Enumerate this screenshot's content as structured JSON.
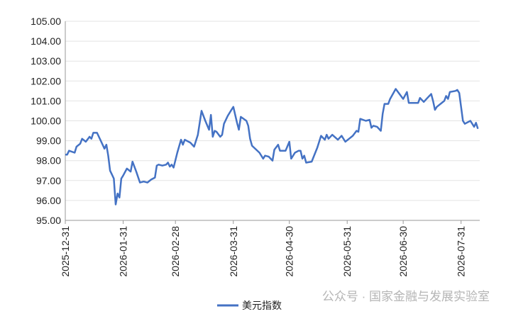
{
  "chart_data": {
    "type": "line",
    "x": [
      "2025-12-31",
      "2026-01-01",
      "2026-01-02",
      "2026-01-05",
      "2026-01-06",
      "2026-01-08",
      "2026-01-09",
      "2026-01-11",
      "2026-01-13",
      "2026-01-14",
      "2026-01-15",
      "2026-01-17",
      "2026-01-19",
      "2026-01-21",
      "2026-01-22",
      "2026-01-23",
      "2026-01-24",
      "2026-01-25",
      "2026-01-26",
      "2026-01-27",
      "2026-01-28",
      "2026-01-29",
      "2026-01-30",
      "2026-01-31",
      "2026-02-02",
      "2026-02-04",
      "2026-02-05",
      "2026-02-07",
      "2026-02-09",
      "2026-02-11",
      "2026-02-13",
      "2026-02-15",
      "2026-02-17",
      "2026-02-18",
      "2026-02-19",
      "2026-02-21",
      "2026-02-23",
      "2026-02-24",
      "2026-02-25",
      "2026-02-26",
      "2026-02-27",
      "2026-03-01",
      "2026-03-03",
      "2026-03-04",
      "2026-03-05",
      "2026-03-08",
      "2026-03-10",
      "2026-03-12",
      "2026-03-14",
      "2026-03-16",
      "2026-03-18",
      "2026-03-19",
      "2026-03-20",
      "2026-03-21",
      "2026-03-22",
      "2026-03-24",
      "2026-03-25",
      "2026-03-26",
      "2026-03-28",
      "2026-03-30",
      "2026-03-31",
      "2026-04-02",
      "2026-04-03",
      "2026-04-04",
      "2026-04-07",
      "2026-04-08",
      "2026-04-09",
      "2026-04-10",
      "2026-04-14",
      "2026-04-16",
      "2026-04-17",
      "2026-04-19",
      "2026-04-21",
      "2026-04-22",
      "2026-04-24",
      "2026-04-25",
      "2026-04-28",
      "2026-04-30",
      "2026-05-01",
      "2026-05-03",
      "2026-05-05",
      "2026-05-06",
      "2026-05-07",
      "2026-05-08",
      "2026-05-09",
      "2026-05-12",
      "2026-05-15",
      "2026-05-17",
      "2026-05-19",
      "2026-05-20",
      "2026-05-21",
      "2026-05-23",
      "2026-05-26",
      "2026-05-28",
      "2026-05-30",
      "2026-06-01",
      "2026-06-03",
      "2026-06-05",
      "2026-06-06",
      "2026-06-07",
      "2026-06-10",
      "2026-06-12",
      "2026-06-13",
      "2026-06-14",
      "2026-06-16",
      "2026-06-18",
      "2026-06-19",
      "2026-06-20",
      "2026-06-22",
      "2026-06-23",
      "2026-06-26",
      "2026-06-28",
      "2026-06-30",
      "2026-07-02",
      "2026-07-03",
      "2026-07-08",
      "2026-07-09",
      "2026-07-11",
      "2026-07-13",
      "2026-07-15",
      "2026-07-16",
      "2026-07-17",
      "2026-07-18",
      "2026-07-22",
      "2026-07-23",
      "2026-07-24",
      "2026-07-25",
      "2026-07-28",
      "2026-07-29",
      "2026-07-30",
      "2026-07-31",
      "2026-08-01",
      "2026-08-02",
      "2026-08-05",
      "2026-08-07",
      "2026-08-08",
      "2026-08-09"
    ],
    "series": [
      {
        "name": "美元指数",
        "color": "#4472c4",
        "values": [
          98.3,
          98.3,
          98.5,
          98.4,
          98.7,
          98.85,
          99.1,
          98.95,
          99.2,
          99.1,
          99.4,
          99.4,
          99.0,
          98.6,
          98.8,
          98.25,
          97.5,
          97.3,
          97.1,
          95.8,
          96.35,
          96.15,
          97.1,
          97.25,
          97.6,
          97.45,
          97.95,
          97.45,
          96.9,
          96.95,
          96.9,
          97.05,
          97.15,
          97.75,
          97.8,
          97.75,
          97.8,
          97.9,
          97.7,
          97.8,
          97.65,
          98.4,
          99.05,
          98.8,
          99.05,
          98.9,
          98.7,
          99.3,
          100.5,
          100.0,
          99.55,
          100.3,
          99.2,
          99.5,
          99.45,
          99.2,
          99.3,
          99.85,
          100.25,
          100.55,
          100.7,
          99.9,
          99.55,
          100.2,
          100.0,
          99.75,
          99.1,
          98.75,
          98.4,
          98.1,
          98.25,
          98.2,
          98.0,
          98.55,
          98.8,
          98.5,
          98.5,
          98.95,
          98.1,
          98.4,
          98.5,
          98.5,
          98.1,
          98.25,
          97.9,
          97.95,
          98.65,
          99.25,
          99.05,
          99.3,
          99.1,
          99.3,
          99.05,
          99.25,
          98.95,
          99.1,
          99.25,
          99.5,
          99.45,
          100.1,
          100.0,
          100.05,
          99.65,
          99.75,
          99.7,
          99.5,
          100.35,
          100.85,
          100.85,
          101.1,
          101.6,
          101.35,
          101.1,
          101.45,
          100.9,
          100.9,
          101.15,
          100.95,
          101.15,
          101.35,
          101.0,
          100.55,
          100.7,
          101.0,
          101.25,
          101.1,
          101.45,
          101.5,
          101.55,
          101.4,
          100.7,
          100.0,
          99.85,
          100.0,
          99.7,
          99.9,
          99.6
        ]
      }
    ],
    "xlim": [
      "2025-12-31",
      "2026-08-10"
    ],
    "xticks": [
      "2025-12-31",
      "2026-01-31",
      "2026-02-28",
      "2026-03-31",
      "2026-04-30",
      "2026-05-31",
      "2026-06-30",
      "2026-07-31"
    ],
    "ylim": [
      95,
      105
    ],
    "yticks": [
      {
        "value": 95,
        "label": "95.00"
      },
      {
        "value": 96,
        "label": "96.00"
      },
      {
        "value": 97,
        "label": "97.00"
      },
      {
        "value": 98,
        "label": "98.00"
      },
      {
        "value": 99,
        "label": "99.00"
      },
      {
        "value": 100,
        "label": "100.00"
      },
      {
        "value": 101,
        "label": "101.00"
      },
      {
        "value": 102,
        "label": "102.00"
      },
      {
        "value": 103,
        "label": "103.00"
      },
      {
        "value": 104,
        "label": "104.00"
      },
      {
        "value": 105,
        "label": "105.00"
      }
    ],
    "grid": true,
    "legend": "bottom",
    "watermark": "公众号 · 国家金融与发展实验室"
  }
}
